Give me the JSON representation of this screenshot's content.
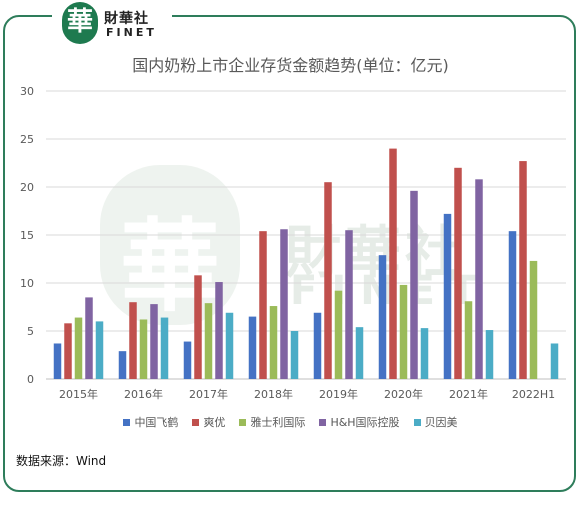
{
  "logo": {
    "mark": "華",
    "name_cn": "財華社",
    "name_en": "FINET",
    "watermark_cn": "財華社",
    "watermark_en": "FINET"
  },
  "source": "数据来源：Wind",
  "colors": {
    "中国飞鹤": "#4472c4",
    "爽优": "#c0504d",
    "雅士利国际": "#9bbb59",
    "H&H国际控股": "#8064a2",
    "贝因美": "#4bacc6",
    "frame": "#2e7d5b"
  },
  "chart_data": {
    "type": "bar",
    "title": "国内奶粉上市企业存货金额趋势(单位：亿元)",
    "xlabel": "",
    "ylabel": "",
    "ylim": [
      0,
      30
    ],
    "yticks": [
      0,
      5,
      10,
      15,
      20,
      25,
      30
    ],
    "grid": true,
    "legend_position": "bottom",
    "categories": [
      "2015年",
      "2016年",
      "2017年",
      "2018年",
      "2019年",
      "2020年",
      "2021年",
      "2022H1"
    ],
    "series": [
      {
        "name": "中国飞鹤",
        "values": [
          3.7,
          2.9,
          3.9,
          6.5,
          6.9,
          12.9,
          17.2,
          15.4
        ]
      },
      {
        "name": "爽优",
        "values": [
          5.8,
          8.0,
          10.8,
          15.4,
          20.5,
          24.0,
          22.0,
          22.7
        ]
      },
      {
        "name": "雅士利国际",
        "values": [
          6.4,
          6.2,
          7.9,
          7.6,
          9.2,
          9.8,
          8.1,
          12.3
        ]
      },
      {
        "name": "H&H国际控股",
        "values": [
          8.5,
          7.8,
          10.1,
          15.6,
          15.5,
          19.6,
          20.8,
          null
        ]
      },
      {
        "name": "贝因美",
        "values": [
          6.0,
          6.4,
          6.9,
          5.0,
          5.4,
          5.3,
          5.1,
          3.7
        ]
      }
    ]
  }
}
